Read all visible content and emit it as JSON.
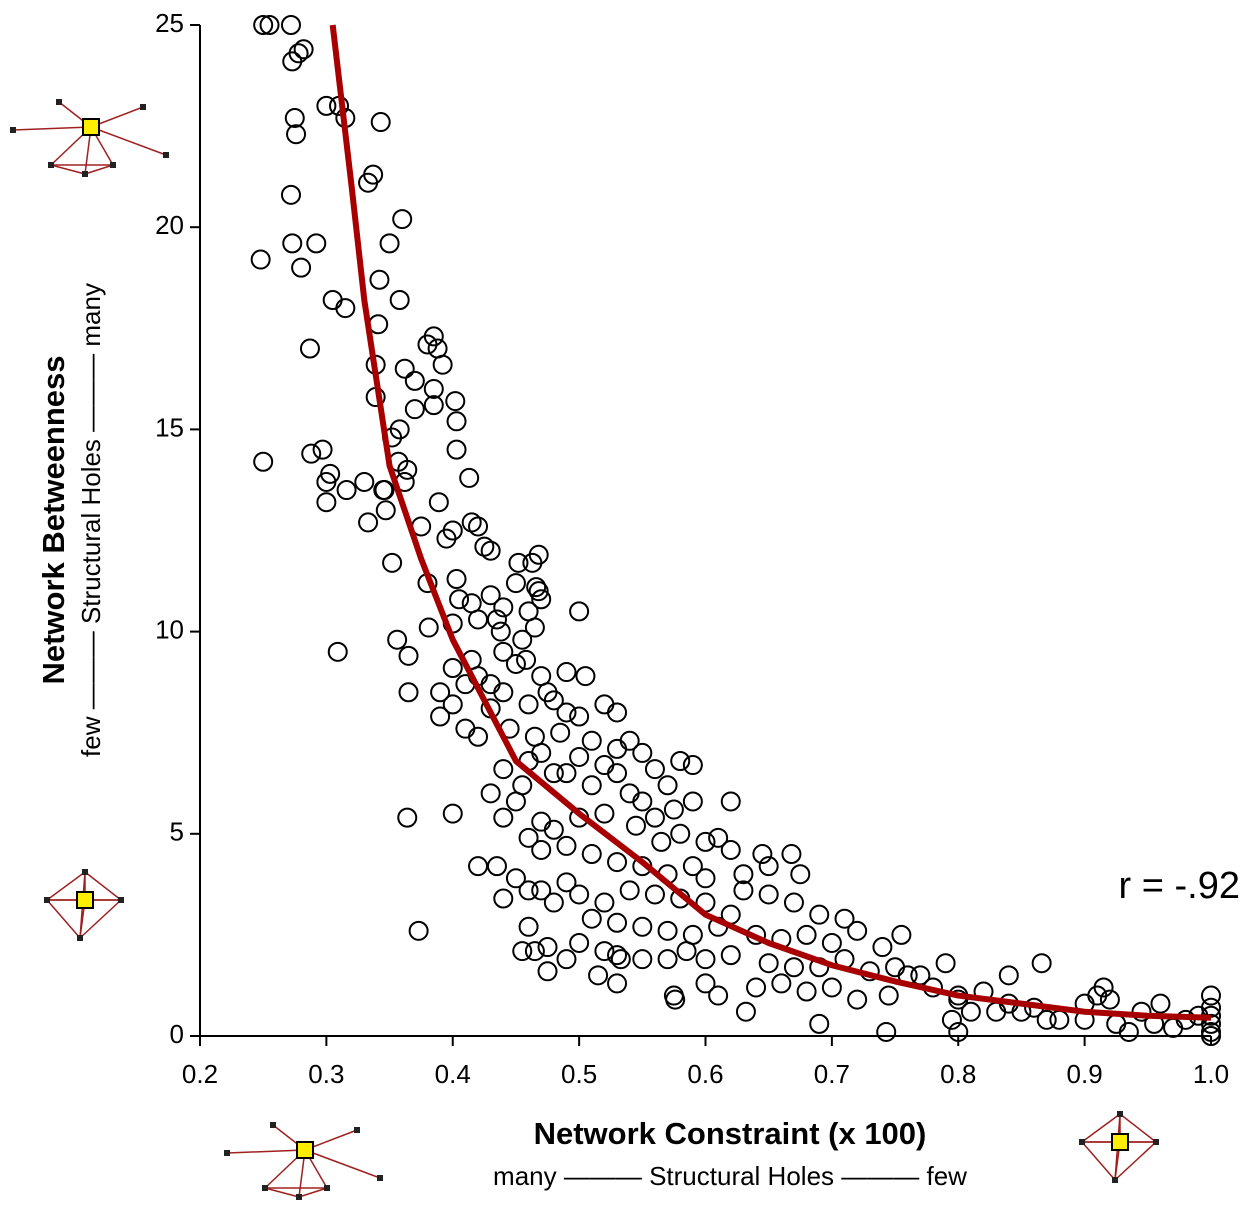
{
  "chart_data": {
    "type": "scatter",
    "title": "Network Constraint (x 100)",
    "x_subtitle": "many ——— Structural Holes ——— few",
    "y_label": "Network Betweenness",
    "y_subtitle": "few ——— Structural Holes ——— many",
    "annotation": "r = -.92",
    "marker_color": "#000000",
    "x": [
      0.25,
      0.255,
      0.272,
      0.278,
      0.282,
      0.273,
      0.275,
      0.276,
      0.3,
      0.31,
      0.315,
      0.343,
      0.337,
      0.333,
      0.272,
      0.36,
      0.248,
      0.273,
      0.292,
      0.28,
      0.35,
      0.342,
      0.305,
      0.315,
      0.358,
      0.341,
      0.287,
      0.38,
      0.385,
      0.388,
      0.392,
      0.339,
      0.362,
      0.37,
      0.385,
      0.339,
      0.37,
      0.385,
      0.402,
      0.403,
      0.358,
      0.352,
      0.403,
      0.288,
      0.297,
      0.25,
      0.357,
      0.364,
      0.303,
      0.3,
      0.33,
      0.316,
      0.362,
      0.346,
      0.345,
      0.3,
      0.389,
      0.413,
      0.333,
      0.347,
      0.375,
      0.4,
      0.395,
      0.415,
      0.42,
      0.425,
      0.43,
      0.468,
      0.352,
      0.452,
      0.463,
      0.38,
      0.403,
      0.466,
      0.45,
      0.468,
      0.47,
      0.405,
      0.415,
      0.43,
      0.44,
      0.46,
      0.5,
      0.42,
      0.435,
      0.438,
      0.455,
      0.465,
      0.381,
      0.356,
      0.309,
      0.4,
      0.44,
      0.45,
      0.458,
      0.365,
      0.415,
      0.4,
      0.42,
      0.43,
      0.47,
      0.39,
      0.365,
      0.41,
      0.44,
      0.475,
      0.48,
      0.505,
      0.49,
      0.43,
      0.46,
      0.5,
      0.52,
      0.53,
      0.39,
      0.4,
      0.41,
      0.42,
      0.445,
      0.465,
      0.485,
      0.49,
      0.51,
      0.53,
      0.54,
      0.55,
      0.46,
      0.47,
      0.48,
      0.5,
      0.52,
      0.53,
      0.56,
      0.57,
      0.58,
      0.59,
      0.44,
      0.455,
      0.49,
      0.51,
      0.54,
      0.55,
      0.56,
      0.575,
      0.59,
      0.62,
      0.43,
      0.4,
      0.364,
      0.44,
      0.45,
      0.47,
      0.48,
      0.5,
      0.52,
      0.545,
      0.565,
      0.58,
      0.6,
      0.61,
      0.62,
      0.645,
      0.668,
      0.46,
      0.47,
      0.49,
      0.51,
      0.53,
      0.55,
      0.57,
      0.59,
      0.6,
      0.63,
      0.65,
      0.675,
      0.42,
      0.435,
      0.45,
      0.47,
      0.49,
      0.5,
      0.52,
      0.54,
      0.56,
      0.58,
      0.6,
      0.62,
      0.63,
      0.65,
      0.67,
      0.69,
      0.71,
      0.44,
      0.46,
      0.48,
      0.51,
      0.53,
      0.55,
      0.57,
      0.59,
      0.61,
      0.64,
      0.66,
      0.68,
      0.7,
      0.72,
      0.74,
      0.755,
      0.373,
      0.46,
      0.465,
      0.475,
      0.49,
      0.5,
      0.52,
      0.53,
      0.55,
      0.57,
      0.585,
      0.6,
      0.62,
      0.65,
      0.67,
      0.69,
      0.71,
      0.73,
      0.75,
      0.77,
      0.79,
      0.455,
      0.475,
      0.515,
      0.53,
      0.575,
      0.6,
      0.61,
      0.64,
      0.66,
      0.68,
      0.7,
      0.72,
      0.745,
      0.76,
      0.78,
      0.8,
      0.82,
      0.84,
      0.86,
      0.866,
      0.84,
      0.8,
      0.81,
      0.83,
      0.85,
      0.87,
      0.88,
      0.9,
      0.91,
      0.915,
      0.92,
      0.9,
      0.925,
      0.935,
      0.945,
      0.955,
      0.96,
      0.97,
      0.98,
      0.99,
      1,
      1,
      1,
      1,
      1,
      1,
      0.8,
      0.795,
      0.743,
      0.69,
      0.632,
      0.576,
      0.533
    ],
    "values": [
      25,
      25,
      25,
      24.3,
      24.4,
      24.1,
      22.7,
      22.3,
      23,
      23,
      22.7,
      22.6,
      21.3,
      21.1,
      20.8,
      20.2,
      19.2,
      19.6,
      19.6,
      19,
      19.6,
      18.7,
      18.2,
      18,
      18.2,
      17.6,
      17,
      17.1,
      17.3,
      17,
      16.6,
      16.6,
      16.5,
      16.2,
      16,
      15.8,
      15.5,
      15.6,
      15.7,
      15.2,
      15,
      14.8,
      14.5,
      14.4,
      14.5,
      14.2,
      14.2,
      14,
      13.9,
      13.7,
      13.7,
      13.5,
      13.7,
      13.5,
      13.5,
      13.2,
      13.2,
      13.8,
      12.7,
      13,
      12.6,
      12.5,
      12.3,
      12.7,
      12.6,
      12.1,
      12,
      11.9,
      11.7,
      11.7,
      11.7,
      11.2,
      11.3,
      11.1,
      11.2,
      11,
      10.8,
      10.8,
      10.7,
      10.9,
      10.6,
      10.5,
      10.5,
      10.3,
      10.3,
      10,
      9.8,
      10.1,
      10.1,
      9.8,
      9.5,
      10.2,
      9.5,
      9.2,
      9.3,
      9.4,
      9.3,
      9.1,
      8.9,
      8.7,
      8.9,
      8.5,
      8.5,
      8.7,
      8.5,
      8.5,
      8.3,
      8.9,
      9,
      8.1,
      8.2,
      7.9,
      8.2,
      8,
      7.9,
      8.2,
      7.6,
      7.4,
      7.6,
      7.4,
      7.5,
      8,
      7.3,
      7.1,
      7.3,
      7,
      6.8,
      7,
      6.5,
      6.9,
      6.7,
      6.5,
      6.6,
      6.2,
      6.8,
      6.7,
      6.6,
      6.2,
      6.5,
      6.2,
      6,
      5.8,
      5.4,
      5.6,
      5.8,
      5.8,
      6,
      5.5,
      5.4,
      5.4,
      5.8,
      5.3,
      5.1,
      5.4,
      5.5,
      5.2,
      4.8,
      5,
      4.8,
      4.9,
      4.6,
      4.5,
      4.5,
      4.9,
      4.6,
      4.7,
      4.5,
      4.3,
      4.2,
      4,
      4.2,
      3.9,
      4,
      4.2,
      4,
      4.2,
      4.2,
      3.9,
      3.6,
      3.8,
      3.5,
      3.3,
      3.6,
      3.5,
      3.4,
      3.3,
      3,
      3.6,
      3.5,
      3.3,
      3,
      2.9,
      3.4,
      3.6,
      3.3,
      2.9,
      2.8,
      2.7,
      2.6,
      2.5,
      2.7,
      2.5,
      2.4,
      2.5,
      2.3,
      2.6,
      2.2,
      2.5,
      2.6,
      2.7,
      2.1,
      2.2,
      1.9,
      2.3,
      2.1,
      2,
      1.9,
      1.9,
      2.1,
      1.9,
      2,
      1.8,
      1.7,
      1.7,
      1.9,
      1.6,
      1.7,
      1.5,
      1.8,
      2.1,
      1.6,
      1.5,
      1.3,
      1,
      1.3,
      1,
      1.2,
      1.3,
      1.1,
      1.2,
      0.9,
      1,
      1.5,
      1.2,
      0.9,
      1.1,
      0.8,
      0.7,
      1.8,
      1.5,
      1,
      0.6,
      0.6,
      0.6,
      0.4,
      0.4,
      0.8,
      1,
      1.2,
      0.9,
      0.4,
      0.3,
      0.1,
      0.6,
      0.3,
      0.8,
      0.2,
      0.4,
      0.5,
      1,
      0.7,
      0.5,
      0.3,
      0.1,
      0,
      0.1,
      0.4,
      0.1,
      0.3,
      0.6,
      0.9,
      1.9
    ],
    "fit": {
      "color": "#a80000",
      "x": [
        0.305,
        0.32,
        0.33,
        0.35,
        0.375,
        0.4,
        0.45,
        0.5,
        0.55,
        0.6,
        0.65,
        0.7,
        0.75,
        0.8,
        0.85,
        0.9,
        0.95,
        1.0
      ],
      "values": [
        25,
        21,
        18.2,
        14.1,
        11.8,
        9.8,
        6.8,
        5.5,
        4.3,
        3.0,
        2.3,
        1.75,
        1.35,
        1.0,
        0.8,
        0.6,
        0.5,
        0.45
      ]
    },
    "xlim": [
      0.2,
      1.0
    ],
    "xticks": [
      0.2,
      0.3,
      0.4,
      0.5,
      0.6,
      0.7,
      0.8,
      0.9,
      {
        "value": 1,
        "label": "1.0"
      }
    ],
    "ylim": [
      0,
      25
    ],
    "yticks": [
      0,
      5,
      10,
      15,
      20,
      25
    ],
    "grid": false
  }
}
